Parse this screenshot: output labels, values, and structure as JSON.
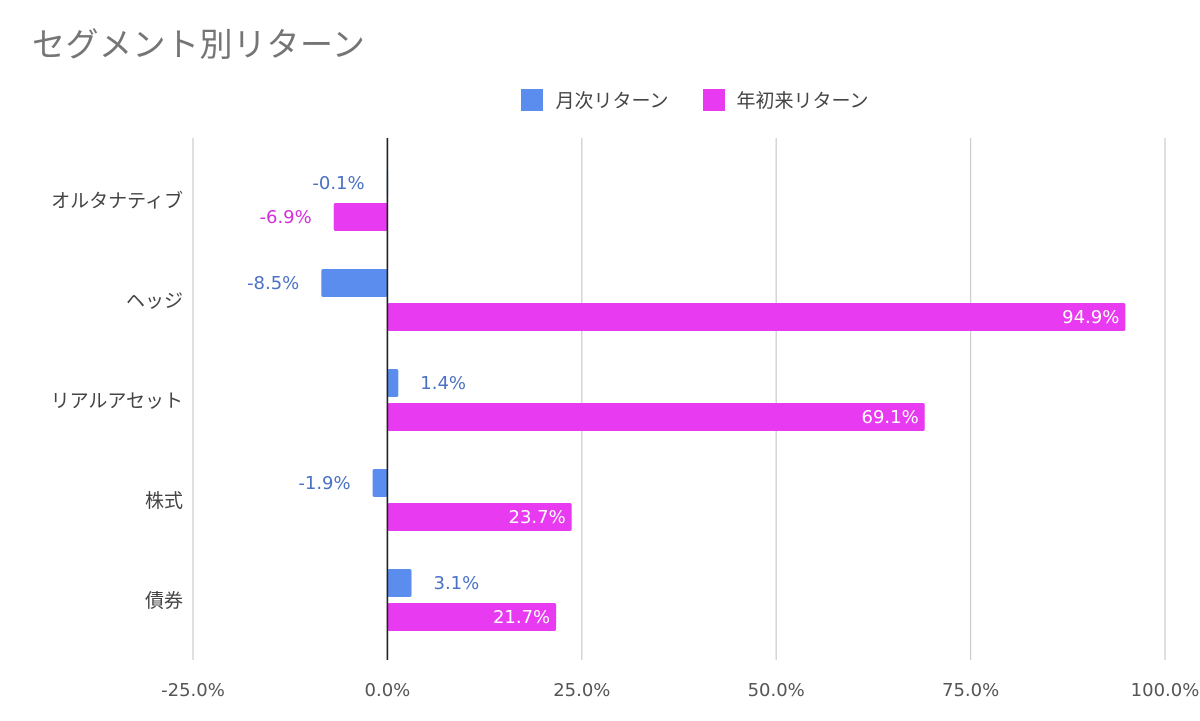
{
  "chart_data": {
    "type": "bar",
    "orientation": "horizontal",
    "title": "セグメント別リターン",
    "categories": [
      "オルタナティブ",
      "ヘッジ",
      "リアルアセット",
      "株式",
      "債券"
    ],
    "series": [
      {
        "name": "月次リターン",
        "color": "#5b8def",
        "values": [
          -0.1,
          -8.5,
          1.4,
          -1.9,
          3.1
        ],
        "labels": [
          "-0.1%",
          "-8.5%",
          "1.4%",
          "-1.9%",
          "3.1%"
        ]
      },
      {
        "name": "年初来リターン",
        "color": "#e83af0",
        "values": [
          -6.9,
          94.9,
          69.1,
          23.7,
          21.7
        ],
        "labels": [
          "-6.9%",
          "94.9%",
          "69.1%",
          "23.7%",
          "21.7%"
        ]
      }
    ],
    "xlim": [
      -25,
      100
    ],
    "x_ticks": [
      -25,
      0,
      25,
      50,
      75,
      100
    ],
    "x_tick_labels": [
      "-25.0%",
      "0.0%",
      "25.0%",
      "50.0%",
      "75.0%",
      "100.0%"
    ],
    "grid": true,
    "legend_position": "top-center",
    "unit": "%"
  }
}
